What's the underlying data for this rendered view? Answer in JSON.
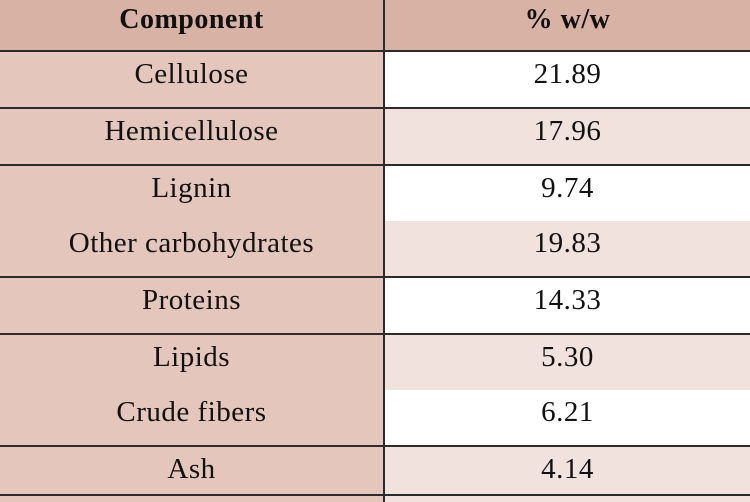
{
  "table": {
    "headers": [
      "Component",
      "% w/w"
    ],
    "rows": [
      {
        "component": "Cellulose",
        "value": "21.89"
      },
      {
        "component": "Hemicellulose",
        "value": "17.96"
      },
      {
        "component": "Lignin",
        "value": "9.74"
      },
      {
        "component": "Other carbohydrates",
        "value": "19.83"
      },
      {
        "component": "Proteins",
        "value": "14.33"
      },
      {
        "component": "Lipids",
        "value": "5.30"
      },
      {
        "component": "Crude fibers",
        "value": "6.21"
      },
      {
        "component": "Ash",
        "value": "4.14"
      }
    ]
  },
  "colors": {
    "header_bg": "#d9b2a6",
    "component_bg": "#e4c6bd",
    "value_shade_bg": "#f1e2dd",
    "value_white_bg": "#ffffff",
    "rule": "#2b2b2b"
  }
}
